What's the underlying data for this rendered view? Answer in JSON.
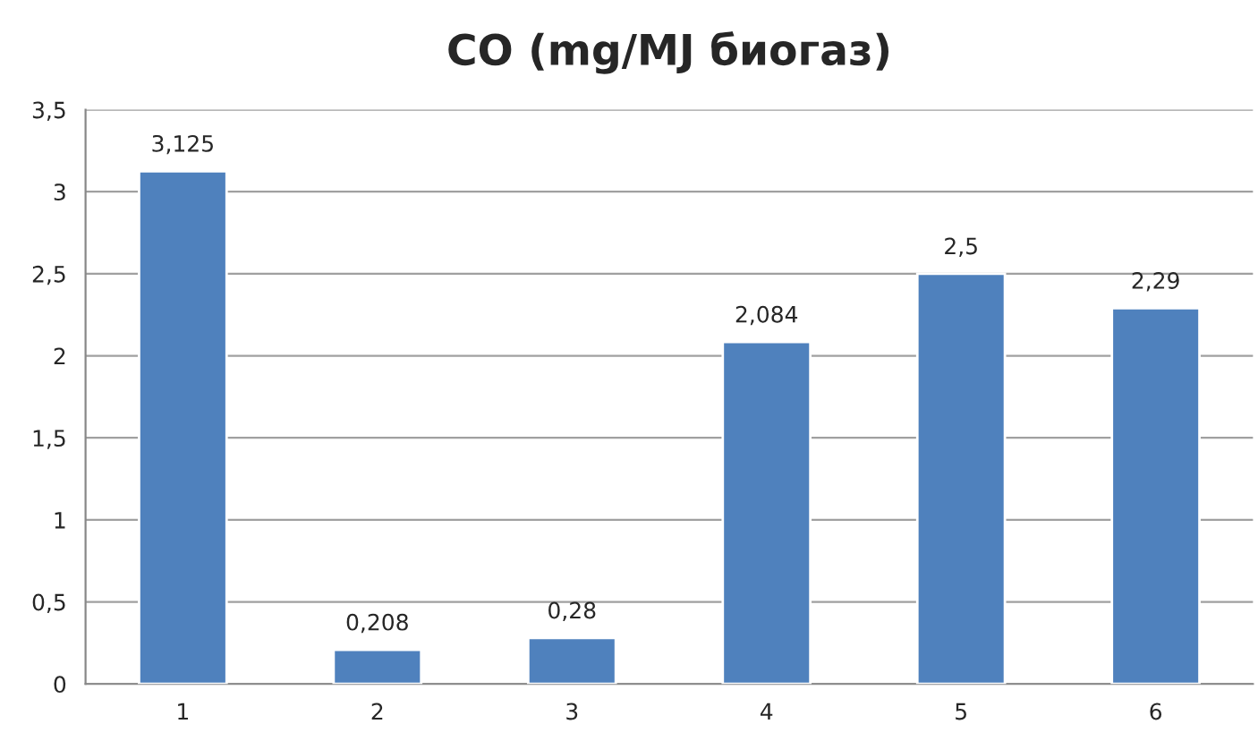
{
  "chart_data": {
    "type": "bar",
    "title": "CO (mg/MJ биогаз)",
    "categories": [
      "1",
      "2",
      "3",
      "4",
      "5",
      "6"
    ],
    "values": [
      3.125,
      0.208,
      0.28,
      2.084,
      2.5,
      2.29
    ],
    "value_labels": [
      "3,125",
      "0,208",
      "0,28",
      "2,084",
      "2,5",
      "2,29"
    ],
    "color": "#4f81bd",
    "ylim": [
      0,
      3.5
    ],
    "yticks": [
      0,
      {
        "value": 0.5,
        "label": "0,5"
      },
      1,
      {
        "value": 1.5,
        "label": "1,5"
      },
      2,
      {
        "value": 2.5,
        "label": "2,5"
      },
      3,
      {
        "value": 3.5,
        "label": "3,5"
      }
    ],
    "grid": "y"
  }
}
